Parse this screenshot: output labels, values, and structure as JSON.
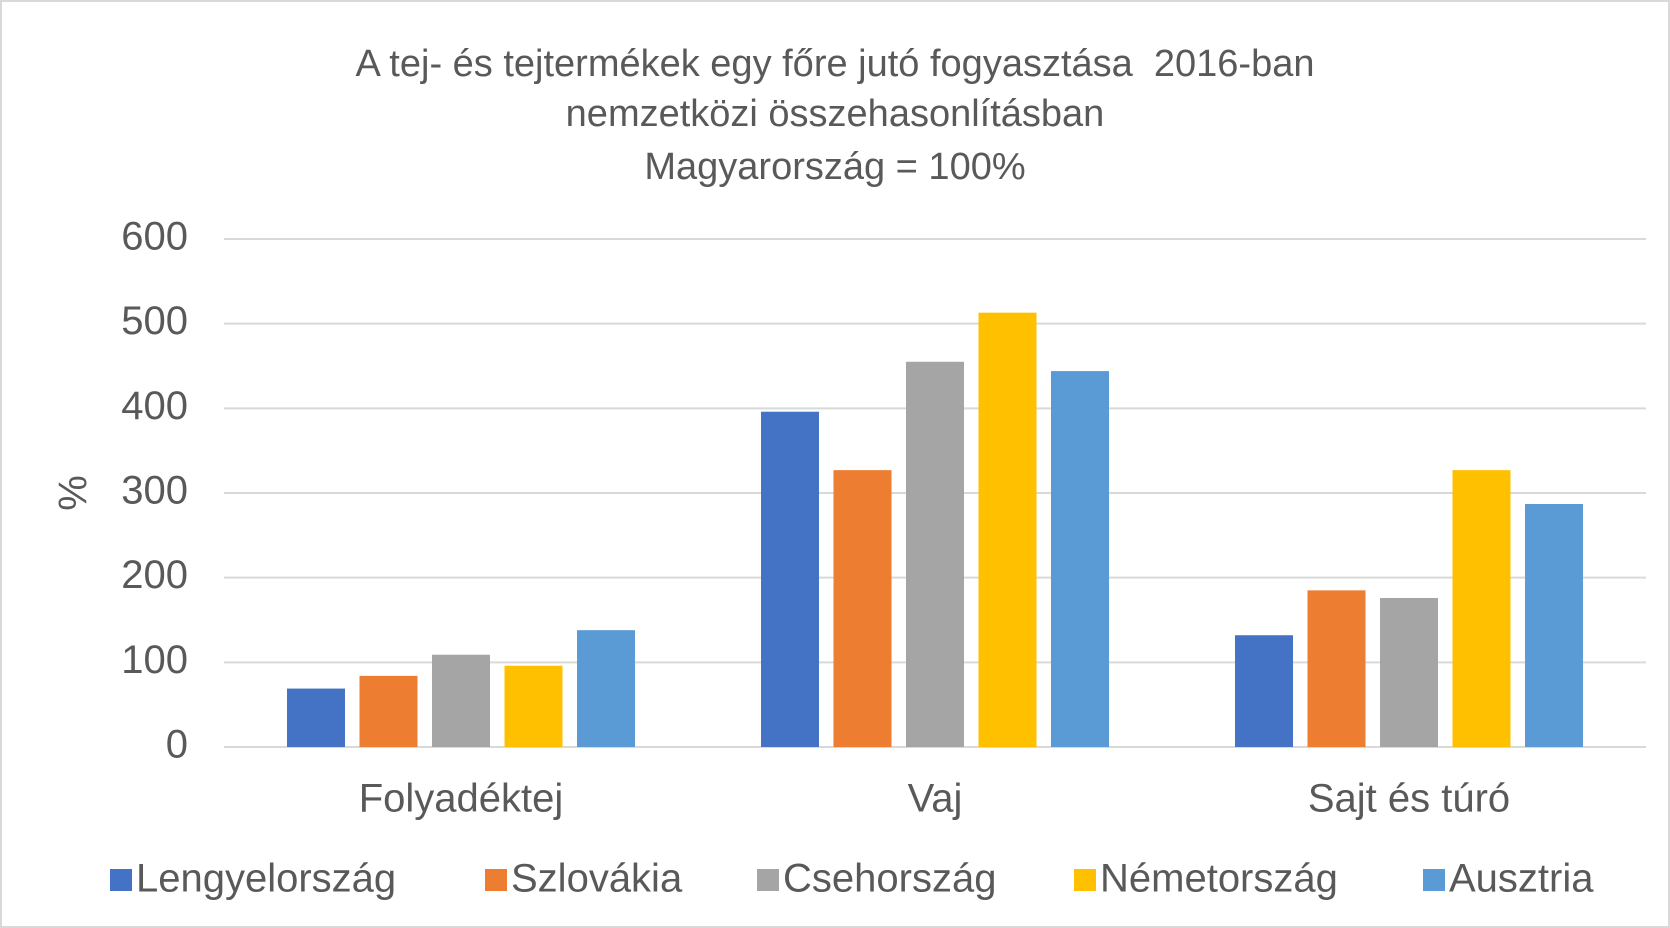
{
  "chart_data": {
    "type": "bar",
    "title": [
      "A tej- és tejtermékek egy főre jutó fogyasztása  2016-ban",
      "nemzetközi összehasonlításban",
      "Magyarország = 100%"
    ],
    "y_label": "%",
    "categories": [
      "Folyadéktej",
      "Vaj",
      "Sajt és túró"
    ],
    "series": [
      {
        "name": "Lengyelország",
        "color": "#4472c4",
        "values": [
          69,
          396,
          132
        ]
      },
      {
        "name": "Szlovákia",
        "color": "#ed7d31",
        "values": [
          84,
          327,
          185
        ]
      },
      {
        "name": "Csehország",
        "color": "#a5a5a5",
        "values": [
          109,
          455,
          176
        ]
      },
      {
        "name": "Németország",
        "color": "#ffc000",
        "values": [
          96,
          513,
          327
        ]
      },
      {
        "name": "Ausztria",
        "color": "#5b9bd5",
        "values": [
          138,
          444,
          287
        ]
      }
    ],
    "ylim": [
      0,
      600
    ],
    "yticks": [
      0,
      100,
      200,
      300,
      400,
      500,
      600
    ],
    "grid": true,
    "legend": "bottom"
  }
}
